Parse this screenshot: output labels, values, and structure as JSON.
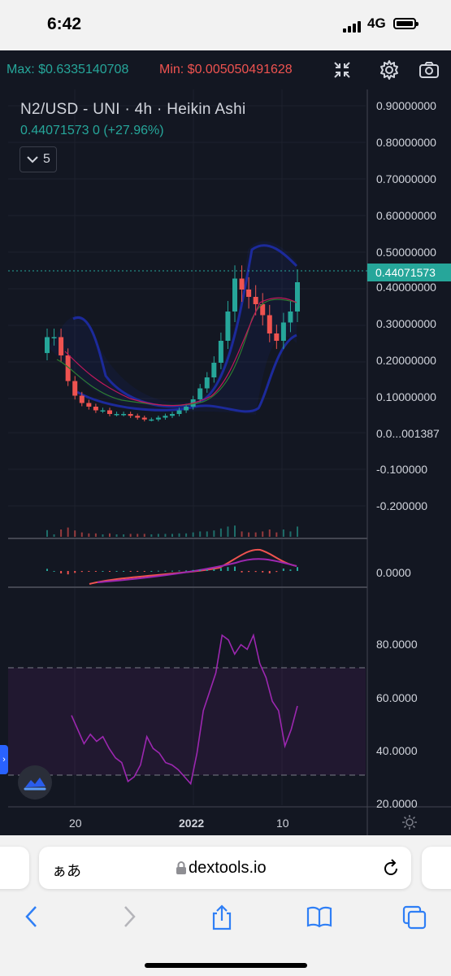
{
  "status_bar": {
    "time": "6:42",
    "network": "4G"
  },
  "toolbar": {
    "max_label": "Max: $0.6335140708",
    "min_label": "Min: $0.005050491628",
    "icons": [
      "collapse-icon",
      "gear-icon",
      "camera-icon"
    ]
  },
  "chart_header": {
    "symbol_line": "N2/USD - UNI · 4h · Heikin Ashi",
    "last_row": "0.44071573  0  (+27.96%)",
    "interval_button": "5"
  },
  "colors": {
    "up": "#26a69a",
    "down": "#ef5350",
    "background": "#131722",
    "rsi_line": "#9c27b0",
    "bollinger": "#1c2a9b"
  },
  "chart_data": [
    {
      "type": "line",
      "title": "N2/USD - UNI · 4h · Heikin Ashi",
      "ylabel": "",
      "ylim": [
        -0.26,
        0.94
      ],
      "yticks": [
        "0.90000000",
        "0.80000000",
        "0.70000000",
        "0.60000000",
        "0.50000000",
        "0.40000000",
        "0.30000000",
        "0.20000000",
        "0.10000000",
        "0.0...001387",
        "-0.100000",
        "-0.200000"
      ],
      "last_price": "0.44071573",
      "x": [
        0,
        2,
        4,
        6,
        8,
        10,
        12,
        14,
        16,
        18,
        20,
        22,
        24,
        26,
        28,
        30,
        32,
        34,
        36,
        38,
        40,
        42,
        44,
        46,
        48,
        50,
        52,
        54,
        56,
        58,
        60,
        62,
        64,
        66,
        68,
        70,
        72
      ],
      "series": [
        {
          "values": [
            0.29,
            0.29,
            0.24,
            0.17,
            0.13,
            0.11,
            0.1,
            0.09,
            0.09,
            0.08,
            0.08,
            0.08,
            0.075,
            0.07,
            0.065,
            0.065,
            0.07,
            0.075,
            0.08,
            0.09,
            0.1,
            0.12,
            0.15,
            0.18,
            0.22,
            0.28,
            0.36,
            0.45,
            0.42,
            0.4,
            0.38,
            0.35,
            0.3,
            0.28,
            0.33,
            0.36,
            0.44
          ]
        }
      ]
    },
    {
      "type": "line",
      "ylim": [
        -0.05,
        0.05
      ],
      "yticks": [
        "0.0000"
      ],
      "series": []
    },
    {
      "type": "line",
      "ylim": [
        20,
        100
      ],
      "yticks": [
        "80.0000",
        "60.0000",
        "40.0000",
        "20.0000"
      ],
      "x": [
        0,
        2,
        4,
        6,
        8,
        10,
        12,
        14,
        16,
        18,
        20,
        22,
        24,
        26,
        28,
        30,
        32,
        34,
        36,
        38,
        40,
        42,
        44,
        46,
        48,
        50,
        52,
        54,
        56,
        58,
        60,
        62,
        64,
        66,
        68,
        70,
        72
      ],
      "series": [
        {
          "values": [
            56,
            50,
            44,
            48,
            45,
            47,
            42,
            38,
            36,
            28,
            30,
            35,
            47,
            42,
            40,
            36,
            35,
            33,
            30,
            27,
            40,
            58,
            66,
            74,
            90,
            88,
            82,
            86,
            84,
            90,
            78,
            72,
            62,
            58,
            43,
            50,
            60
          ]
        }
      ]
    }
  ],
  "x_axis_labels": [
    "20",
    "2022",
    "10"
  ],
  "browser": {
    "text_size_label": "ぁあ",
    "domain": "dextools.io"
  }
}
